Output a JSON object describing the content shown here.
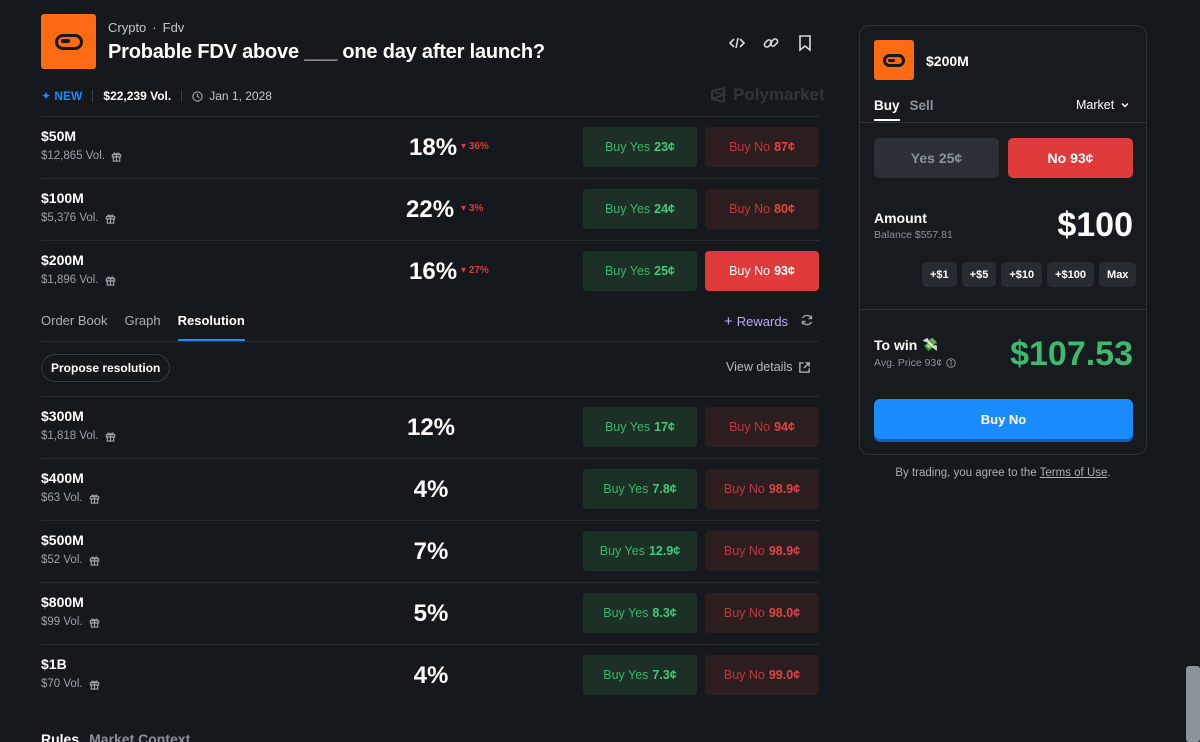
{
  "header": {
    "category": "Crypto",
    "subcategory": "Fdv",
    "separator": "·",
    "title": "Probable FDV above ___ one day after launch?",
    "new_badge": "✦ NEW",
    "volume": "$22,239 Vol.",
    "date": "Jan 1, 2028",
    "brand": "Polymarket",
    "icons": [
      "code-embed-icon",
      "link-icon",
      "bookmark-icon"
    ]
  },
  "markets_top": [
    {
      "label": "$50M",
      "volume": "$12,865 Vol.",
      "pct": "18%",
      "change": "36%",
      "yes": "Buy Yes",
      "yes_price": "23¢",
      "no": "Buy No",
      "no_price": "87¢",
      "selected": false
    },
    {
      "label": "$100M",
      "volume": "$5,376 Vol.",
      "pct": "22%",
      "change": "3%",
      "yes": "Buy Yes",
      "yes_price": "24¢",
      "no": "Buy No",
      "no_price": "80¢",
      "selected": false
    },
    {
      "label": "$200M",
      "volume": "$1,896 Vol.",
      "pct": "16%",
      "change": "27%",
      "yes": "Buy Yes",
      "yes_price": "25¢",
      "no": "Buy No",
      "no_price": "93¢",
      "selected": true
    }
  ],
  "detail_tabs": [
    "Order Book",
    "Graph",
    "Resolution"
  ],
  "active_tab": "Resolution",
  "rewards": "Rewards",
  "propose_resolution": "Propose resolution",
  "view_details": "View details",
  "markets_bottom": [
    {
      "label": "$300M",
      "volume": "$1,818 Vol.",
      "pct": "12%",
      "yes": "Buy Yes",
      "yes_price": "17¢",
      "no": "Buy No",
      "no_price": "94¢"
    },
    {
      "label": "$400M",
      "volume": "$63 Vol.",
      "pct": "4%",
      "yes": "Buy Yes",
      "yes_price": "7.8¢",
      "no": "Buy No",
      "no_price": "98.9¢"
    },
    {
      "label": "$500M",
      "volume": "$52 Vol.",
      "pct": "7%",
      "yes": "Buy Yes",
      "yes_price": "12.9¢",
      "no": "Buy No",
      "no_price": "98.9¢"
    },
    {
      "label": "$800M",
      "volume": "$99 Vol.",
      "pct": "5%",
      "yes": "Buy Yes",
      "yes_price": "8.3¢",
      "no": "Buy No",
      "no_price": "98.0¢"
    },
    {
      "label": "$1B",
      "volume": "$70 Vol.",
      "pct": "4%",
      "yes": "Buy Yes",
      "yes_price": "7.3¢",
      "no": "Buy No",
      "no_price": "99.0¢"
    }
  ],
  "bottom_tabs": [
    "Rules",
    "Market Context"
  ],
  "panel": {
    "title": "$200M",
    "buy_tab": "Buy",
    "sell_tab": "Sell",
    "order_type": "Market",
    "yes_option": "Yes 25¢",
    "no_option": "No 93¢",
    "amount_label": "Amount",
    "balance": "Balance $557.81",
    "amount": "$100",
    "chips": [
      "+$1",
      "+$5",
      "+$10",
      "+$100",
      "Max"
    ],
    "to_win_label": "To win",
    "to_win_emoji": "💸",
    "avg_price": "Avg. Price 93¢",
    "to_win": "$107.53",
    "submit": "Buy No"
  },
  "terms": {
    "prefix": "By trading, you agree to the ",
    "link": "Terms of Use",
    "suffix": "."
  },
  "colors": {
    "background": "#15191d",
    "brand_orange": "#ff6a13",
    "accent_blue": "#1a8cff",
    "yes_green": "#3dba6d",
    "no_red": "#e03a3a"
  }
}
